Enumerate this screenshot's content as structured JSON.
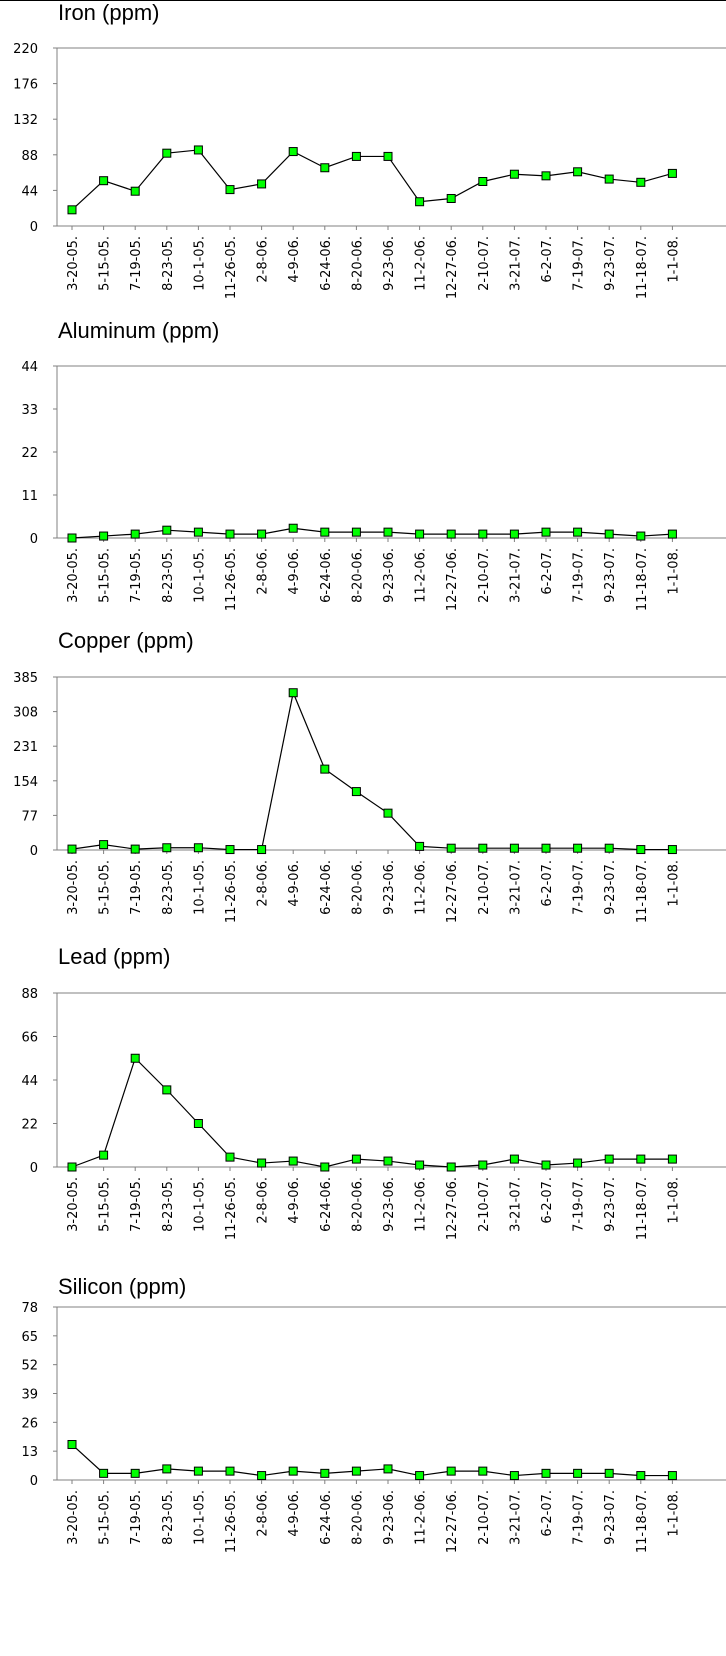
{
  "chart_data": [
    {
      "type": "line",
      "title": "Iron (ppm)",
      "categories": [
        "3-20-05.",
        "5-15-05.",
        "7-19-05.",
        "8-23-05.",
        "10-1-05.",
        "11-26-05.",
        "2-8-06.",
        "4-9-06.",
        "6-24-06.",
        "8-20-06.",
        "9-23-06.",
        "11-2-06.",
        "12-27-06.",
        "2-10-07.",
        "3-21-07.",
        "6-2-07.",
        "7-19-07.",
        "9-23-07.",
        "11-18-07.",
        "1-1-08."
      ],
      "values": [
        20,
        56,
        43,
        90,
        94,
        45,
        52,
        92,
        72,
        86,
        86,
        30,
        34,
        55,
        64,
        62,
        67,
        58,
        54,
        65
      ],
      "ylim": [
        0,
        220
      ],
      "yticks": [
        0,
        44,
        88,
        132,
        176,
        220
      ],
      "grid": false
    },
    {
      "type": "line",
      "title": "Aluminum (ppm)",
      "categories": [
        "3-20-05.",
        "5-15-05.",
        "7-19-05.",
        "8-23-05.",
        "10-1-05.",
        "11-26-05.",
        "2-8-06.",
        "4-9-06.",
        "6-24-06.",
        "8-20-06.",
        "9-23-06.",
        "11-2-06.",
        "12-27-06.",
        "2-10-07.",
        "3-21-07.",
        "6-2-07.",
        "7-19-07.",
        "9-23-07.",
        "11-18-07.",
        "1-1-08."
      ],
      "values": [
        0,
        0.5,
        1,
        2,
        1.5,
        1,
        1,
        2.5,
        1.5,
        1.5,
        1.5,
        1,
        1,
        1,
        1,
        1.5,
        1.5,
        1,
        0.5,
        1
      ],
      "ylim": [
        0,
        44
      ],
      "yticks": [
        0,
        11,
        22,
        33,
        44
      ],
      "grid": false
    },
    {
      "type": "line",
      "title": "Copper (ppm)",
      "categories": [
        "3-20-05.",
        "5-15-05.",
        "7-19-05.",
        "8-23-05.",
        "10-1-05.",
        "11-26-05.",
        "2-8-06.",
        "4-9-06.",
        "6-24-06.",
        "8-20-06.",
        "9-23-06.",
        "11-2-06.",
        "12-27-06.",
        "2-10-07.",
        "3-21-07.",
        "6-2-07.",
        "7-19-07.",
        "9-23-07.",
        "11-18-07.",
        "1-1-08."
      ],
      "values": [
        2,
        12,
        2,
        5,
        5,
        1,
        1,
        350,
        180,
        130,
        82,
        8,
        4,
        4,
        4,
        4,
        4,
        4,
        1,
        1
      ],
      "ylim": [
        0,
        385
      ],
      "yticks": [
        0,
        77,
        154,
        231,
        308,
        385
      ],
      "grid": false
    },
    {
      "type": "line",
      "title": "Lead (ppm)",
      "categories": [
        "3-20-05.",
        "5-15-05.",
        "7-19-05.",
        "8-23-05.",
        "10-1-05.",
        "11-26-05.",
        "2-8-06.",
        "4-9-06.",
        "6-24-06.",
        "8-20-06.",
        "9-23-06.",
        "11-2-06.",
        "12-27-06.",
        "2-10-07.",
        "3-21-07.",
        "6-2-07.",
        "7-19-07.",
        "9-23-07.",
        "11-18-07.",
        "1-1-08."
      ],
      "values": [
        0,
        6,
        55,
        39,
        22,
        5,
        2,
        3,
        0,
        4,
        3,
        1,
        0,
        1,
        4,
        1,
        2,
        4,
        4,
        4
      ],
      "ylim": [
        0,
        88
      ],
      "yticks": [
        0,
        22,
        44,
        66,
        88
      ],
      "grid": false
    },
    {
      "type": "line",
      "title": "Silicon (ppm)",
      "categories": [
        "3-20-05.",
        "5-15-05.",
        "7-19-05.",
        "8-23-05.",
        "10-1-05.",
        "11-26-05.",
        "2-8-06.",
        "4-9-06.",
        "6-24-06.",
        "8-20-06.",
        "9-23-06.",
        "11-2-06.",
        "12-27-06.",
        "2-10-07.",
        "3-21-07.",
        "6-2-07.",
        "7-19-07.",
        "9-23-07.",
        "11-18-07.",
        "1-1-08."
      ],
      "values": [
        16,
        3,
        3,
        5,
        4,
        4,
        2,
        4,
        3,
        4,
        5,
        2,
        4,
        4,
        2,
        3,
        3,
        3,
        2,
        2
      ],
      "ylim": [
        0,
        78
      ],
      "yticks": [
        0,
        13,
        26,
        39,
        52,
        65,
        78
      ],
      "grid": false
    }
  ],
  "colors": {
    "line": "#000000",
    "marker_fill": "#00ff00",
    "marker_stroke": "#000000",
    "axis": "#808080"
  }
}
